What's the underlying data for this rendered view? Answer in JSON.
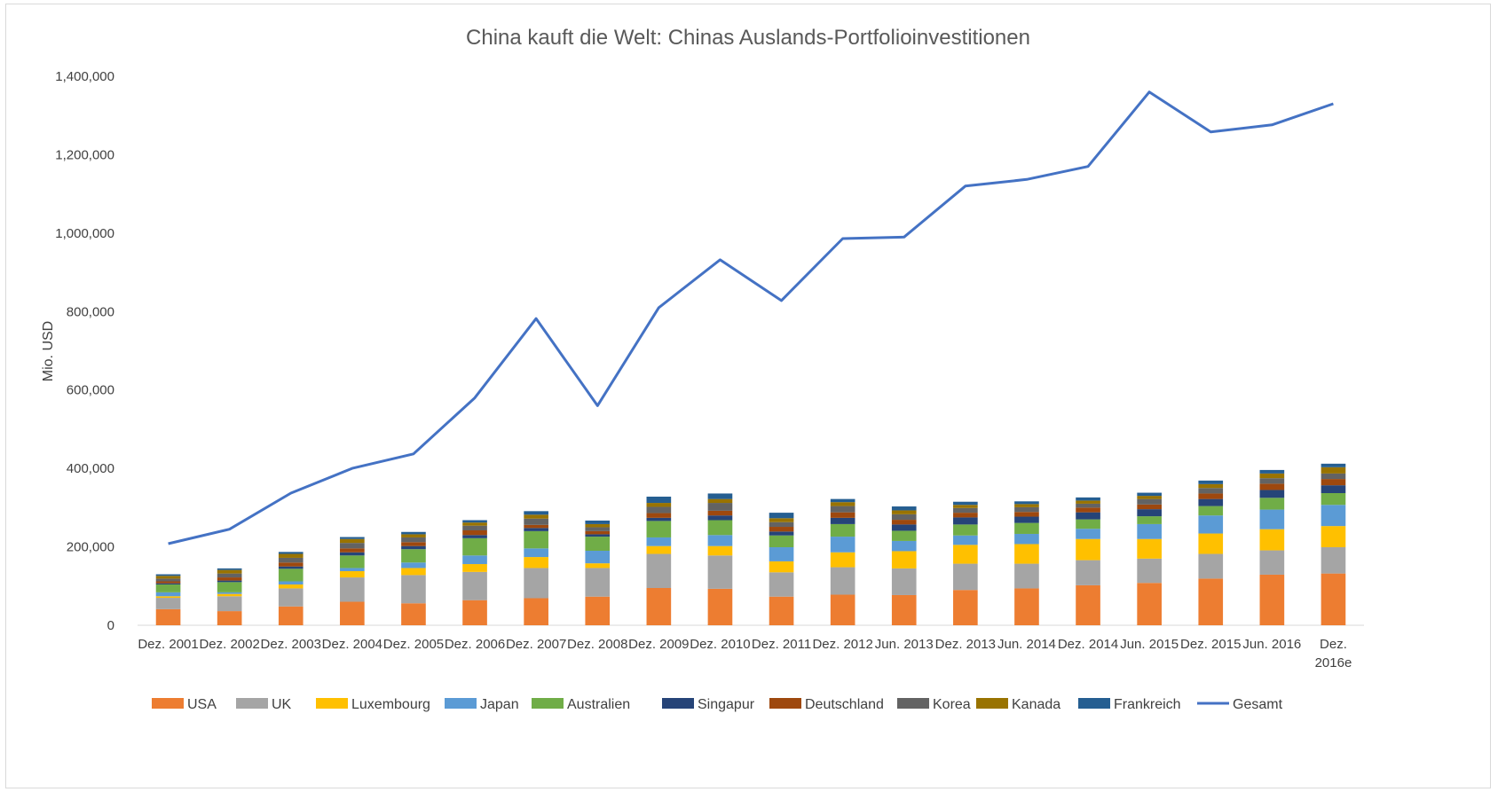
{
  "chart_data": {
    "type": "bar",
    "title": "China kauft die Welt: Chinas Auslands-Portfolioinvestitionen",
    "ylabel": "Mio. USD",
    "xlabel": "",
    "ylim": [
      0,
      1400000
    ],
    "y_ticks": [
      "0",
      "200,000",
      "400,000",
      "600,000",
      "800,000",
      "1,000,000",
      "1,200,000",
      "1,400,000"
    ],
    "y_tick_values": [
      0,
      200000,
      400000,
      600000,
      800000,
      1000000,
      1200000,
      1400000
    ],
    "grid": false,
    "legend_position": "bottom",
    "categories": [
      "Dez. 2001",
      "Dez. 2002",
      "Dez. 2003",
      "Dez. 2004",
      "Dez. 2005",
      "Dez. 2006",
      "Dez. 2007",
      "Dez. 2008",
      "Dez. 2009",
      "Dez. 2010",
      "Dez. 2011",
      "Dez. 2012",
      "Jun. 2013",
      "Dez. 2013",
      "Jun. 2014",
      "Dez. 2014",
      "Jun. 2015",
      "Dez. 2015",
      "Jun. 2016",
      "Dez. 2016e"
    ],
    "stacked_series": [
      {
        "name": "USA",
        "color": "#ED7D31",
        "values": [
          41000,
          36000,
          48000,
          60000,
          56000,
          64000,
          69000,
          73000,
          95000,
          93000,
          73000,
          78000,
          77000,
          90000,
          94000,
          102000,
          108000,
          119000,
          129000,
          132000
        ]
      },
      {
        "name": "UK",
        "color": "#A5A5A5",
        "values": [
          29000,
          38000,
          46000,
          62000,
          72000,
          72000,
          77000,
          73000,
          87000,
          85000,
          62000,
          70000,
          68000,
          67000,
          63000,
          64000,
          62000,
          63000,
          62000,
          67000
        ]
      },
      {
        "name": "Luxembourg",
        "color": "#FFC000",
        "values": [
          4000,
          6000,
          10000,
          16000,
          18000,
          20000,
          28000,
          12000,
          20000,
          24000,
          28000,
          38000,
          44000,
          48000,
          50000,
          54000,
          50000,
          52000,
          54000,
          54000
        ]
      },
      {
        "name": "Japan",
        "color": "#5B9BD5",
        "values": [
          10000,
          4000,
          8000,
          8000,
          14000,
          22000,
          22000,
          32000,
          22000,
          28000,
          36000,
          40000,
          26000,
          24000,
          26000,
          26000,
          38000,
          46000,
          50000,
          54000
        ]
      },
      {
        "name": "Australien",
        "color": "#70AD47",
        "values": [
          20000,
          26000,
          32000,
          32000,
          34000,
          44000,
          44000,
          36000,
          42000,
          38000,
          30000,
          32000,
          26000,
          28000,
          28000,
          24000,
          20000,
          24000,
          30000,
          30000
        ]
      },
      {
        "name": "Singapur",
        "color": "#264478",
        "values": [
          3000,
          4000,
          6000,
          8000,
          8000,
          8000,
          8000,
          6000,
          8000,
          12000,
          10000,
          16000,
          16000,
          18000,
          16000,
          18000,
          18000,
          18000,
          20000,
          20000
        ]
      },
      {
        "name": "Deutschland",
        "color": "#9E480E",
        "values": [
          5000,
          8000,
          10000,
          10000,
          10000,
          12000,
          8000,
          8000,
          12000,
          12000,
          12000,
          14000,
          12000,
          12000,
          12000,
          12000,
          12000,
          14000,
          16000,
          16000
        ]
      },
      {
        "name": "Korea",
        "color": "#636363",
        "values": [
          7000,
          10000,
          12000,
          14000,
          12000,
          12000,
          16000,
          10000,
          16000,
          20000,
          12000,
          16000,
          14000,
          12000,
          12000,
          10000,
          14000,
          14000,
          14000,
          14000
        ]
      },
      {
        "name": "Kanada",
        "color": "#997300",
        "values": [
          7000,
          9000,
          10000,
          10000,
          8000,
          8000,
          10000,
          8000,
          10000,
          10000,
          10000,
          10000,
          10000,
          8000,
          8000,
          8000,
          8000,
          10000,
          12000,
          16000
        ]
      },
      {
        "name": "Frankreich",
        "color": "#255E91",
        "values": [
          4000,
          4000,
          5000,
          5000,
          6000,
          6000,
          9000,
          9000,
          16000,
          14000,
          14000,
          8000,
          10000,
          8000,
          7000,
          8000,
          8000,
          9000,
          9000,
          9000
        ]
      }
    ],
    "line_series": {
      "name": "Gesamt",
      "color": "#4472C4",
      "values": [
        208000,
        245000,
        337000,
        400000,
        437000,
        580000,
        782000,
        560000,
        810000,
        932000,
        828000,
        986000,
        990000,
        1120000,
        1137000,
        1170000,
        1360000,
        1258000,
        1276000,
        1330000
      ]
    },
    "legend": [
      "USA",
      "UK",
      "Luxembourg",
      "Japan",
      "Australien",
      "Singapur",
      "Deutschland",
      "Korea",
      "Kanada",
      "Frankreich",
      "Gesamt"
    ]
  }
}
